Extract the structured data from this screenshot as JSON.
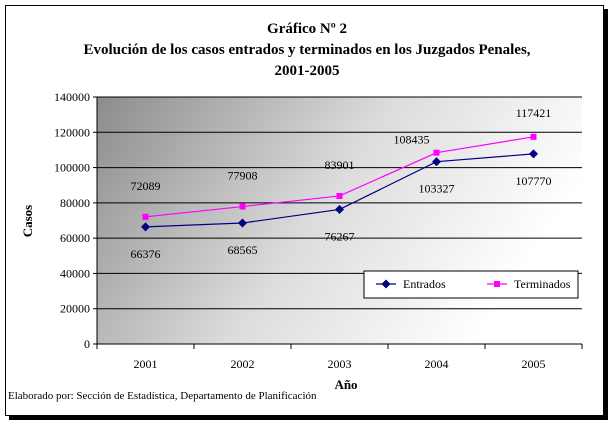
{
  "chart_data": {
    "type": "line",
    "title": "Gráfico Nº 2",
    "subtitle": "Evolución de los casos entrados y terminados en los Juzgados Penales,",
    "subtitle2": "2001-2005",
    "xlabel": "Año",
    "ylabel": "Casos",
    "categories": [
      "2001",
      "2002",
      "2003",
      "2004",
      "2005"
    ],
    "ylim": [
      0,
      140000
    ],
    "yticks": [
      0,
      20000,
      40000,
      60000,
      80000,
      100000,
      120000,
      140000
    ],
    "grid": true,
    "legend_position": "lower-right",
    "series": [
      {
        "name": "Entrados",
        "values": [
          66376,
          68565,
          76267,
          103327,
          107770
        ],
        "color": "#000080",
        "marker": "diamond"
      },
      {
        "name": "Terminados",
        "values": [
          72089,
          77908,
          83901,
          108435,
          117421
        ],
        "color": "#FF00FF",
        "marker": "square"
      }
    ]
  },
  "footer": {
    "note": "Elaborado por: Sección de Estadística, Departamento de Planificación"
  }
}
